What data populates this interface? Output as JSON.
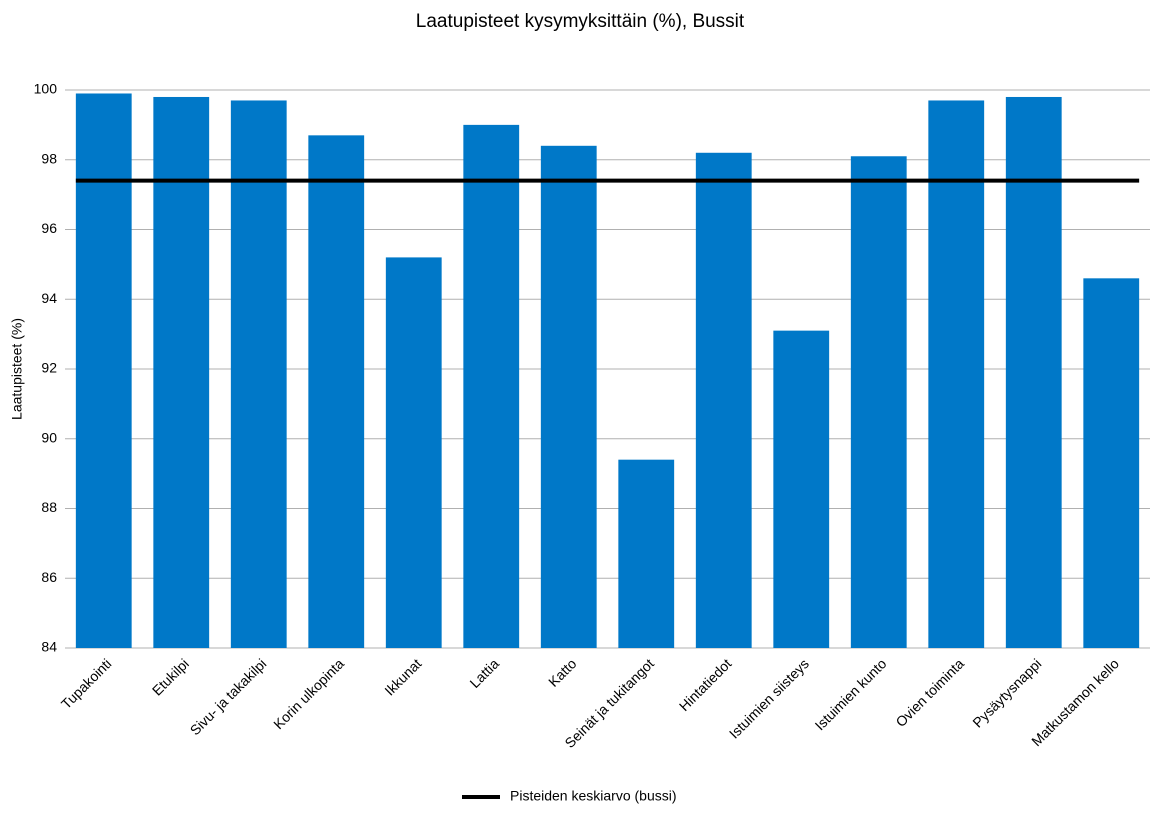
{
  "chart_data": {
    "type": "bar",
    "title": "Laatupisteet kysymyksittäin (%), Bussit",
    "y_label": "Laatupisteet (%)",
    "categories": [
      "Tupakointi",
      "Etukilpi",
      "Sivu- ja takakilpi",
      "Korin ulkopinta",
      "Ikkunat",
      "Lattia",
      "Katto",
      "Seinät ja tukitangot",
      "Hintatiedot",
      "Istuimien siisteys",
      "Istuimien kunto",
      "Ovien toiminta",
      "Pysäytysnappi",
      "Matkustamon kello"
    ],
    "values": [
      99.9,
      99.8,
      99.7,
      98.7,
      95.2,
      99.0,
      98.4,
      89.4,
      98.2,
      93.1,
      98.1,
      99.7,
      99.8,
      94.6
    ],
    "color": "#0078c8",
    "reference_line": {
      "name": "Pisteiden keskiarvo (bussi)",
      "value": 97.4,
      "color": "#000000"
    },
    "ylim": [
      84,
      100
    ],
    "yticks": [
      84,
      86,
      88,
      90,
      92,
      94,
      96,
      98,
      100
    ],
    "grid": true,
    "legend": "bottom"
  }
}
